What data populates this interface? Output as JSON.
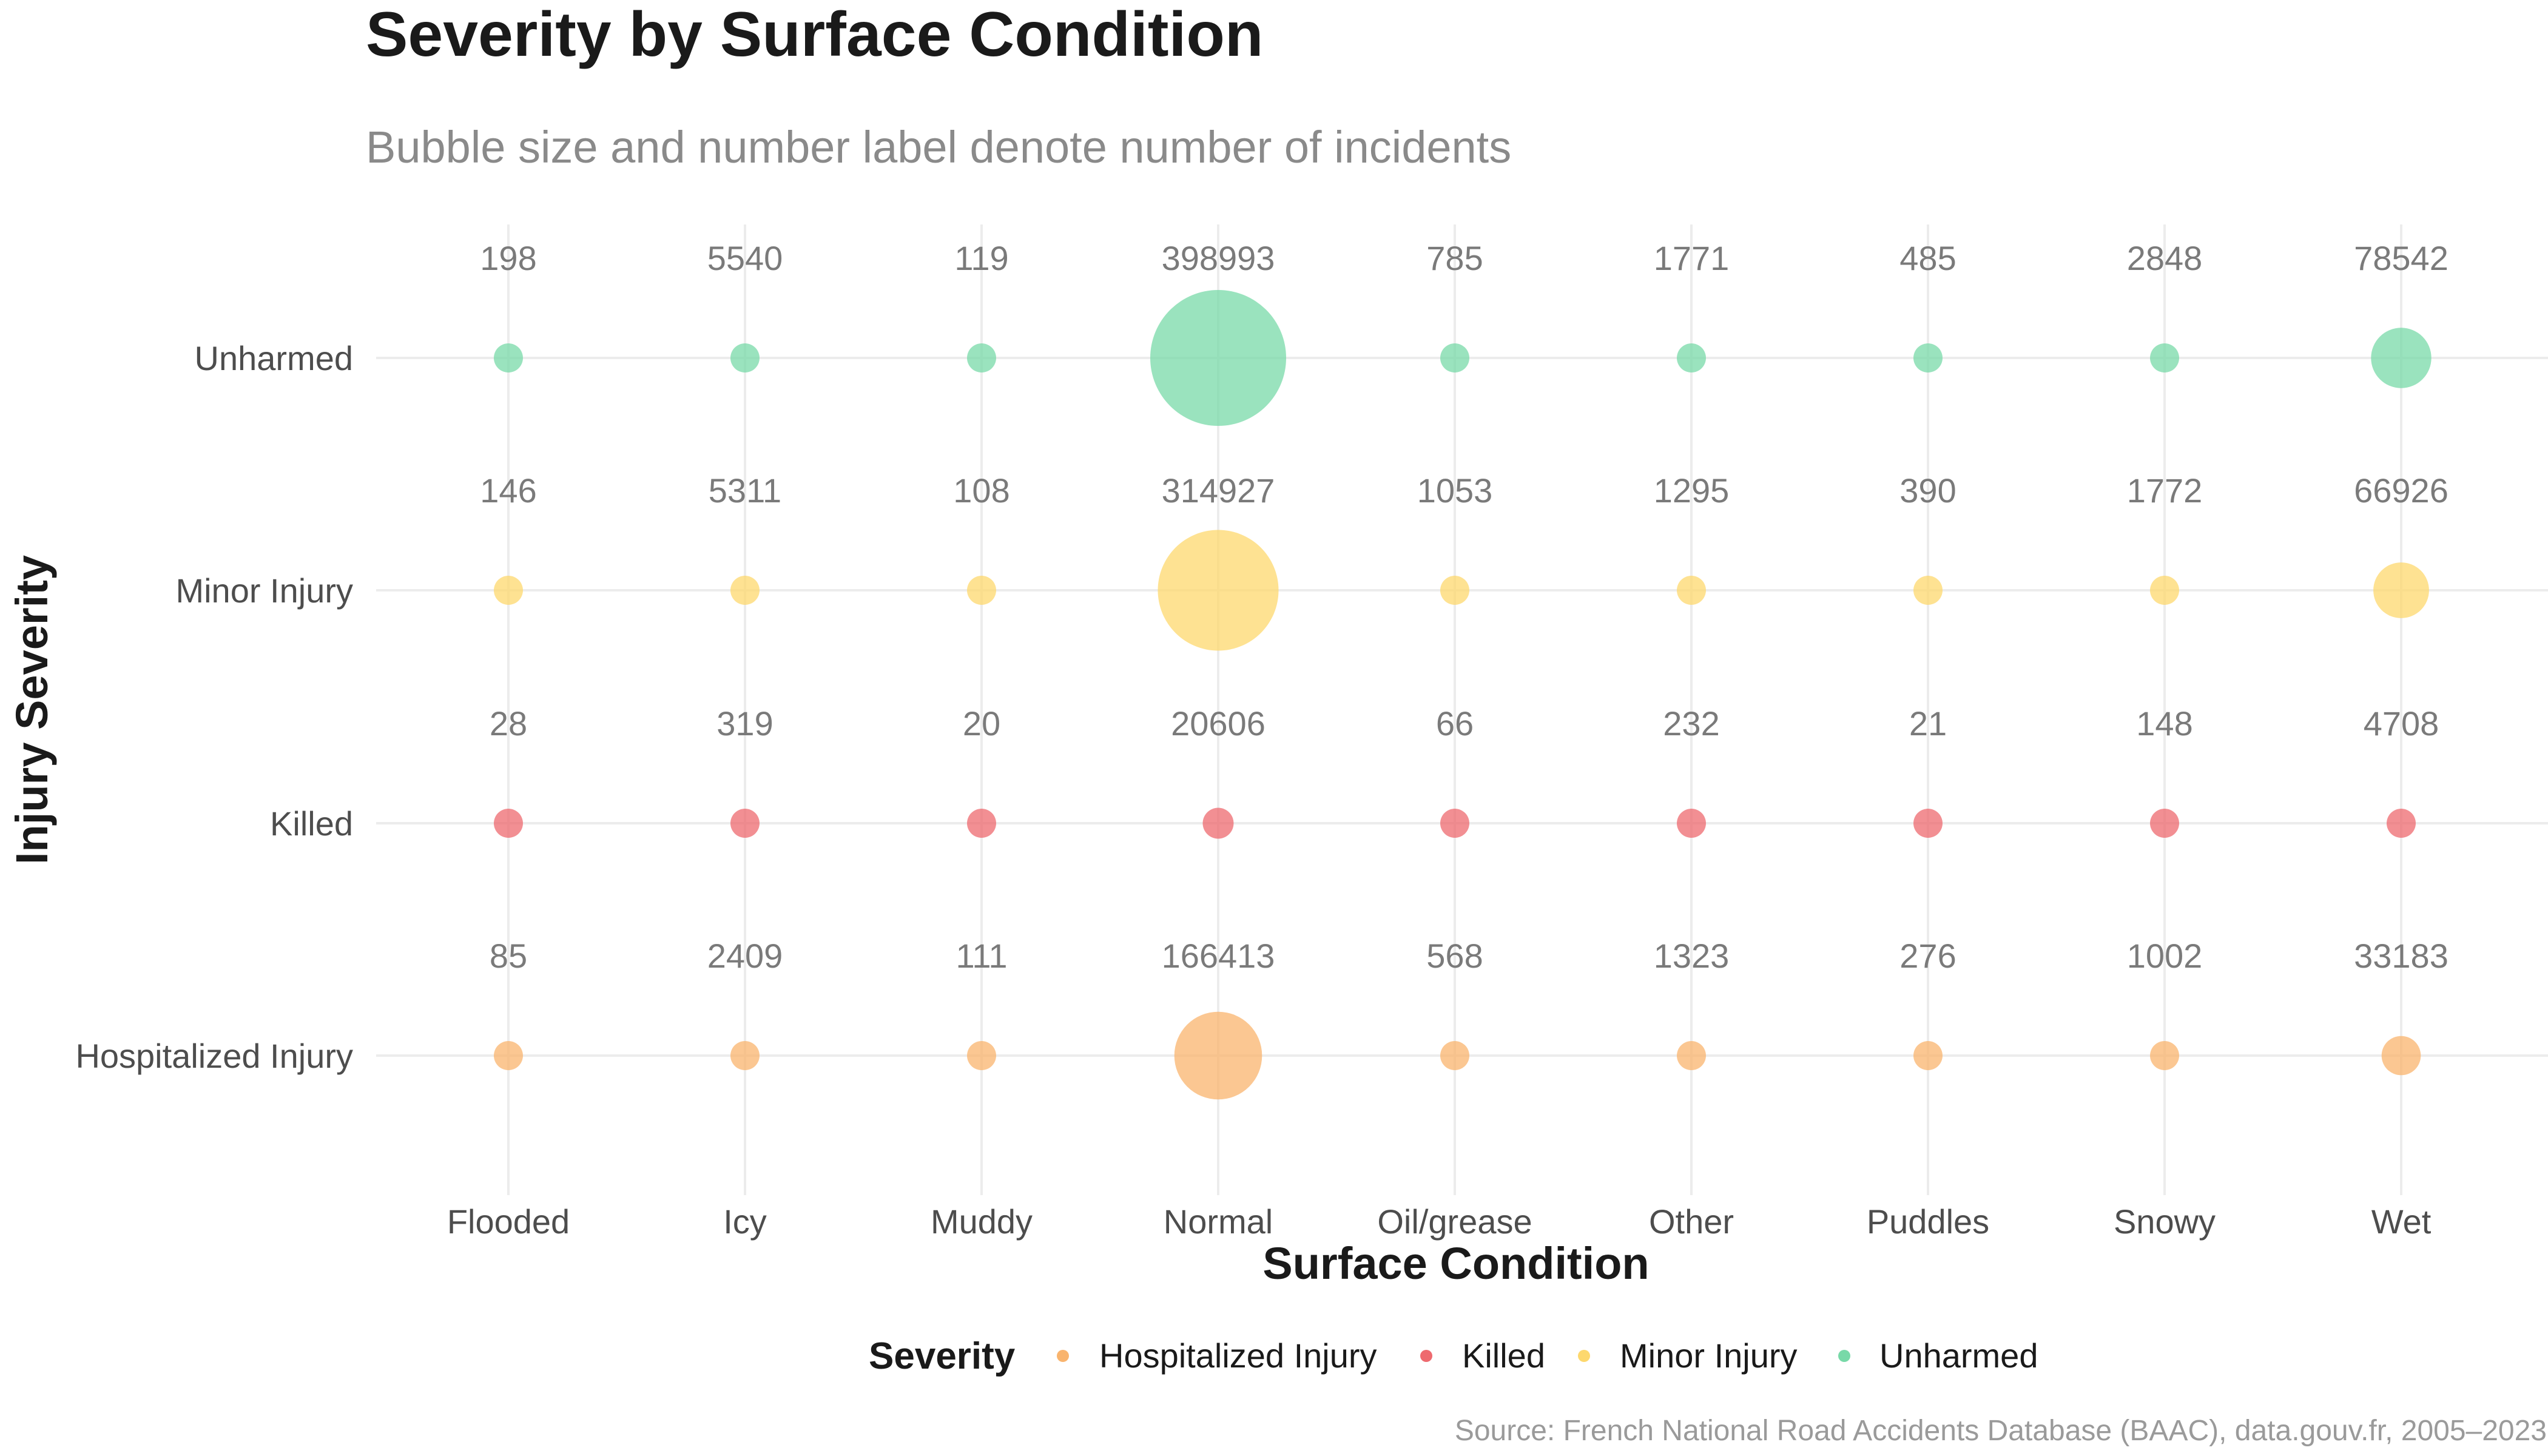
{
  "chart_data": {
    "type": "scatter",
    "title": "Severity by Surface Condition",
    "subtitle": "Bubble size and number label denote number of incidents",
    "xlabel": "Surface Condition",
    "ylabel": "Injury Severity",
    "caption": "Source: French National Road Accidents Database (BAAC), data.gouv.fr, 2005–2023",
    "categories": [
      "Flooded",
      "Icy",
      "Muddy",
      "Normal",
      "Oil/grease",
      "Other",
      "Puddles",
      "Snowy",
      "Wet"
    ],
    "severity_levels": [
      "Unharmed",
      "Minor Injury",
      "Killed",
      "Hospitalized Injury"
    ],
    "grid": true,
    "legend": {
      "title": "Severity",
      "placement": "bottom",
      "entries": [
        {
          "label": "Hospitalized Injury",
          "color": "#f9b46e"
        },
        {
          "label": "Killed",
          "color": "#ee6a6f"
        },
        {
          "label": "Minor Injury",
          "color": "#fdd86e"
        },
        {
          "label": "Unharmed",
          "color": "#78d9a8"
        }
      ]
    },
    "series": [
      {
        "name": "Unharmed",
        "color": "#78d9a8",
        "values": [
          198,
          5540,
          119,
          398993,
          785,
          1771,
          485,
          2848,
          78542
        ]
      },
      {
        "name": "Minor Injury",
        "color": "#fdd86e",
        "values": [
          146,
          5311,
          108,
          314927,
          1053,
          1295,
          390,
          1772,
          66926
        ]
      },
      {
        "name": "Killed",
        "color": "#ee6a6f",
        "values": [
          28,
          319,
          20,
          20606,
          66,
          232,
          21,
          148,
          4708
        ]
      },
      {
        "name": "Hospitalized Injury",
        "color": "#f9b46e",
        "values": [
          85,
          2409,
          111,
          166413,
          568,
          1323,
          276,
          1002,
          33183
        ]
      }
    ]
  }
}
